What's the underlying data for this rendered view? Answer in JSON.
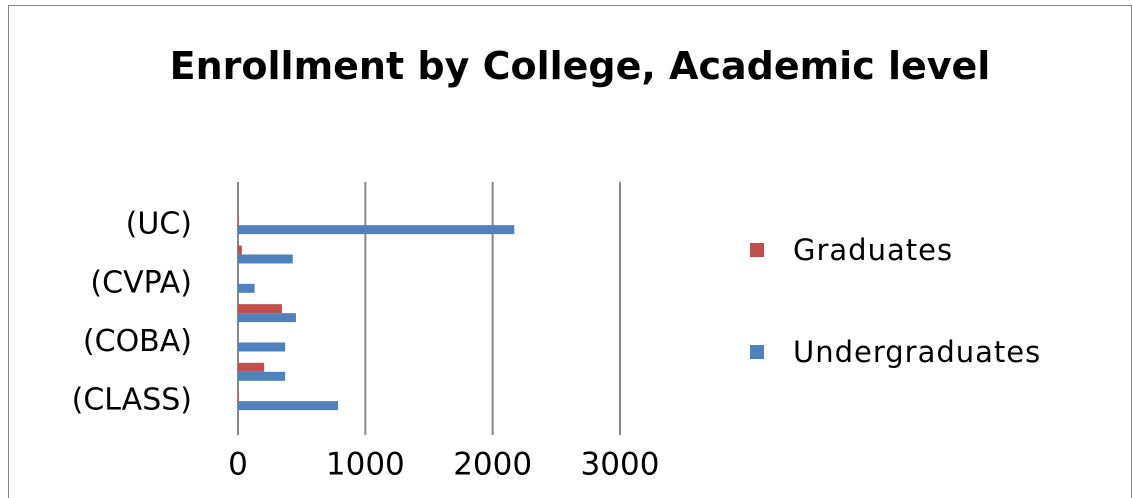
{
  "chart_data": {
    "type": "hbar",
    "title": "Enrollment by College, Academic level",
    "categories": [
      "(CLASS)",
      null,
      "(COBA)",
      null,
      "(CVPA)",
      null,
      "(UC)"
    ],
    "series": [
      {
        "name": "Graduates",
        "color": "#c0504d",
        "values": [
          5,
          205,
          0,
          345,
          0,
          30,
          5
        ]
      },
      {
        "name": "Undergraduates",
        "color": "#4f81bd",
        "values": [
          785,
          370,
          370,
          455,
          130,
          430,
          2170
        ]
      }
    ],
    "xlim": [
      0,
      3000
    ],
    "xticks": [
      0,
      1000,
      2000,
      3000
    ],
    "grid": true,
    "legend": "right"
  }
}
